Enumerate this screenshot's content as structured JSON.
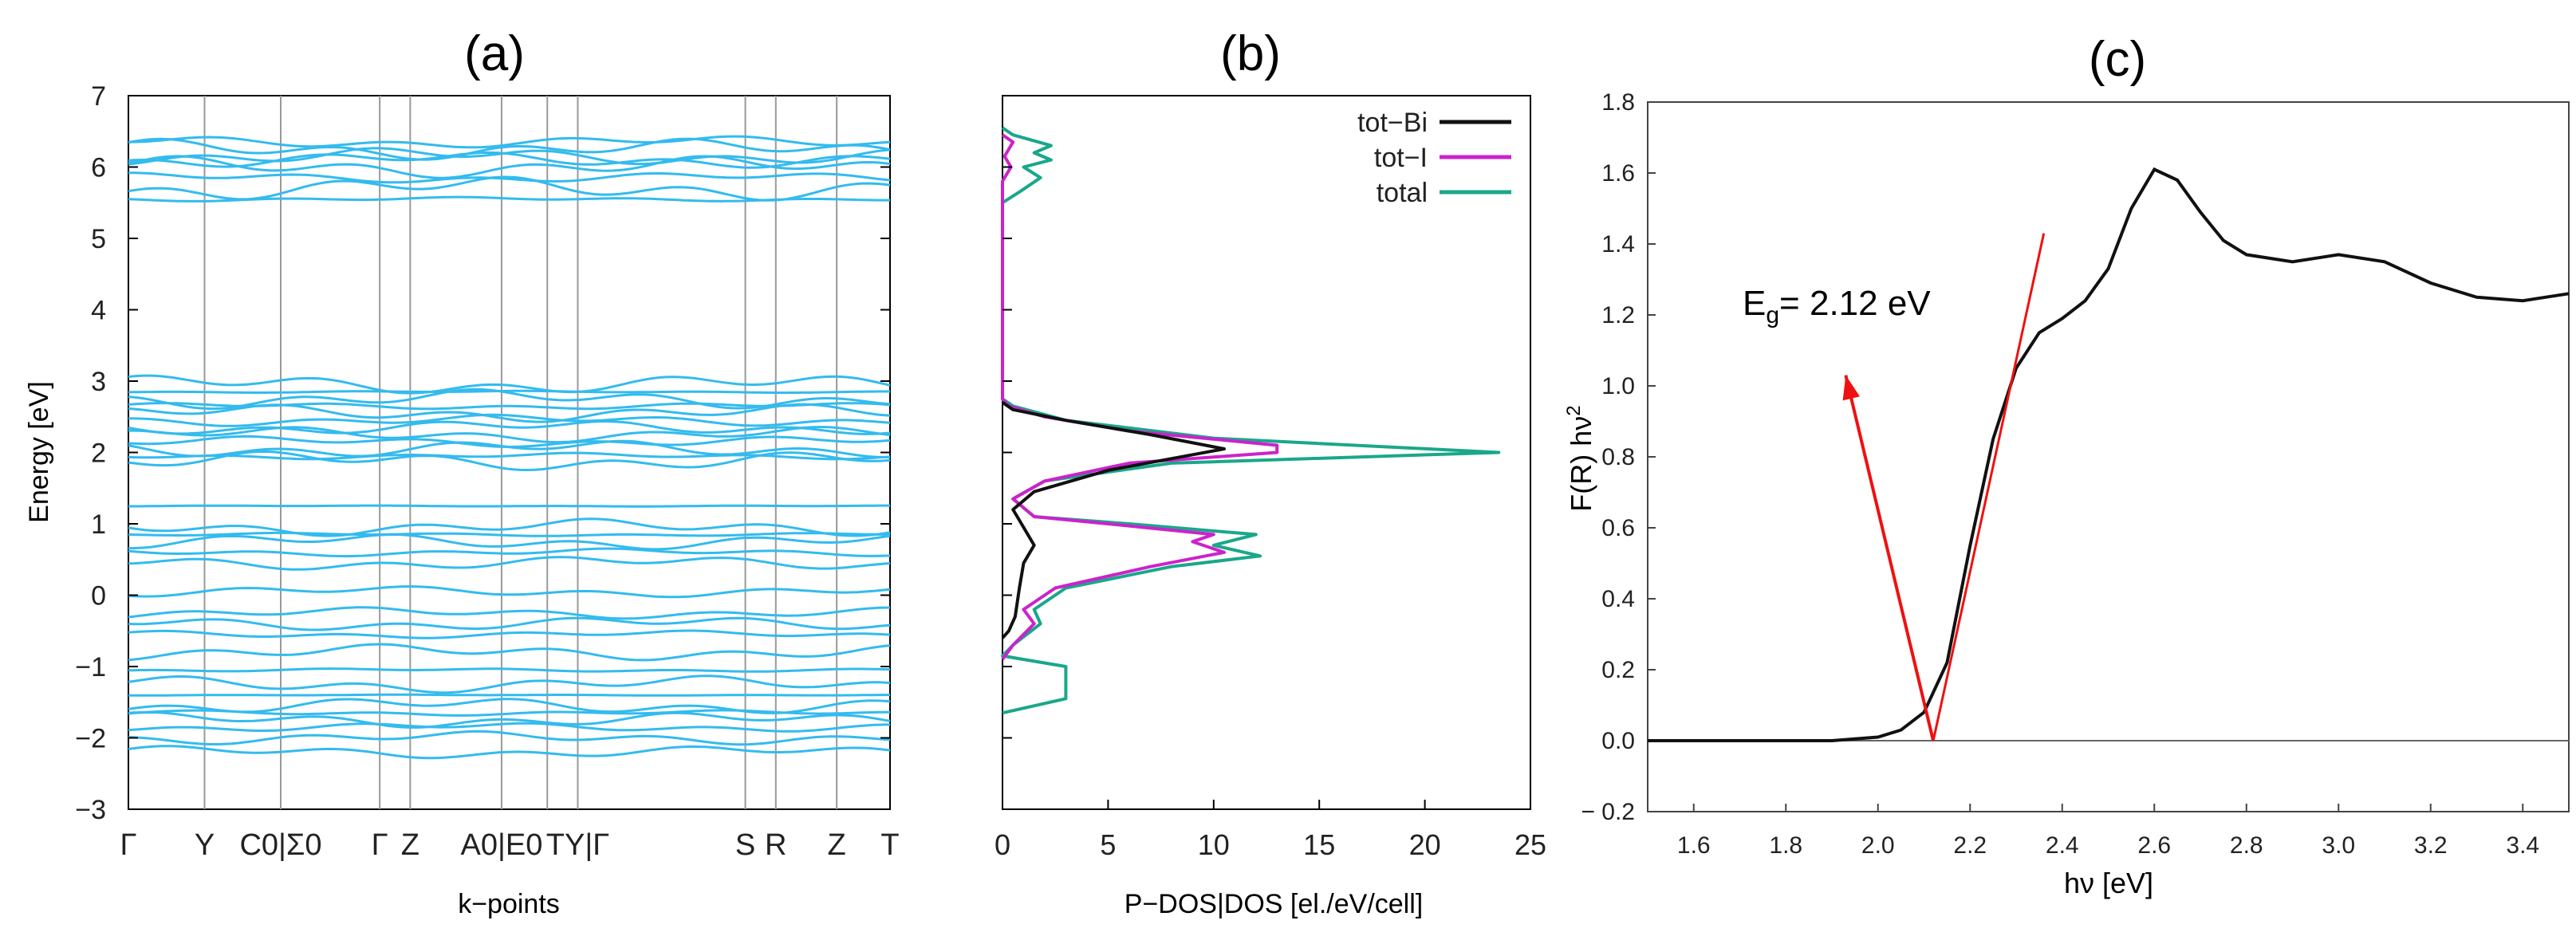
{
  "panels": {
    "a": {
      "title": "(a)",
      "chart_data": {
        "type": "line",
        "xlabel": "k−points",
        "ylabel": "Energy [eV]",
        "ylim": [
          -3,
          7
        ],
        "yticks": [
          -3,
          -2,
          -1,
          0,
          1,
          2,
          3,
          4,
          5,
          6,
          7
        ],
        "kpoint_labels": [
          "Γ",
          "Y",
          "C0|Σ0",
          "Γ",
          "Z",
          "A0|E0",
          "TY|Γ",
          "S",
          "R",
          "Z",
          "T"
        ],
        "kpoint_positions": [
          0,
          0.1,
          0.2,
          0.33,
          0.37,
          0.49,
          0.59,
          0.81,
          0.85,
          0.93,
          1.0
        ],
        "grid_lines_at": [
          0.1,
          0.2,
          0.33,
          0.37,
          0.49,
          0.55,
          0.59,
          0.81,
          0.85,
          0.93
        ],
        "series_color": "#33bbee",
        "band_energies_at_gamma": [
          6.35,
          6.25,
          6.15,
          6.1,
          6.0,
          5.85,
          5.7,
          5.55,
          2.95,
          2.85,
          2.75,
          2.65,
          2.55,
          2.45,
          2.35,
          2.25,
          2.15,
          2.05,
          1.95,
          1.88,
          1.25,
          0.95,
          0.85,
          0.75,
          0.6,
          0.45,
          0.05,
          -0.25,
          -0.4,
          -0.55,
          -0.8,
          -1.05,
          -1.25,
          -1.4,
          -1.55,
          -1.65,
          -1.75,
          -1.85,
          -2.0,
          -2.2
        ]
      }
    },
    "b": {
      "title": "(b)",
      "chart_data": {
        "type": "line",
        "orientation": "horizontal-dos",
        "xlabel": "P−DOS|DOS [el./eV/cell]",
        "xlim": [
          0,
          25
        ],
        "xticks": [
          0,
          5,
          10,
          15,
          20,
          25
        ],
        "ylim": [
          -3,
          7
        ],
        "legend": "top-right",
        "series": [
          {
            "name": "tot−Bi",
            "color": "#111111",
            "points": [
              [
                0,
                -0.6
              ],
              [
                0.3,
                -0.5
              ],
              [
                0.6,
                -0.3
              ],
              [
                0.8,
                0.1
              ],
              [
                1.0,
                0.45
              ],
              [
                1.5,
                0.7
              ],
              [
                1.0,
                0.95
              ],
              [
                0.5,
                1.2
              ],
              [
                1.5,
                1.45
              ],
              [
                5,
                1.75
              ],
              [
                10.5,
                2.05
              ],
              [
                7,
                2.25
              ],
              [
                3,
                2.45
              ],
              [
                0.5,
                2.6
              ],
              [
                0,
                2.7
              ]
            ]
          },
          {
            "name": "tot−I",
            "color": "#cc22cc",
            "points": [
              [
                0,
                -0.9
              ],
              [
                0.5,
                -0.7
              ],
              [
                1.5,
                -0.4
              ],
              [
                1.0,
                -0.2
              ],
              [
                2.5,
                0.1
              ],
              [
                7,
                0.4
              ],
              [
                10.5,
                0.6
              ],
              [
                9,
                0.75
              ],
              [
                10,
                0.85
              ],
              [
                5,
                1.0
              ],
              [
                1.5,
                1.1
              ],
              [
                0.5,
                1.35
              ],
              [
                2,
                1.6
              ],
              [
                6,
                1.85
              ],
              [
                13,
                2.0
              ],
              [
                13,
                2.1
              ],
              [
                6,
                2.3
              ],
              [
                2,
                2.5
              ],
              [
                0.3,
                2.65
              ],
              [
                0,
                2.75
              ],
              [
                0,
                5.8
              ],
              [
                0.4,
                6.0
              ],
              [
                0.1,
                6.15
              ],
              [
                0.5,
                6.35
              ],
              [
                0,
                6.45
              ]
            ]
          },
          {
            "name": "total",
            "color": "#1aa78a",
            "points": [
              [
                0,
                -1.65
              ],
              [
                3,
                -1.45
              ],
              [
                3,
                -1.0
              ],
              [
                0,
                -0.85
              ],
              [
                0.5,
                -0.7
              ],
              [
                1.8,
                -0.4
              ],
              [
                1.5,
                -0.2
              ],
              [
                3,
                0.1
              ],
              [
                8,
                0.4
              ],
              [
                12.2,
                0.55
              ],
              [
                10,
                0.7
              ],
              [
                12,
                0.85
              ],
              [
                6,
                1.0
              ],
              [
                1.5,
                1.1
              ],
              [
                0.5,
                1.35
              ],
              [
                2,
                1.6
              ],
              [
                8,
                1.85
              ],
              [
                23.5,
                2.0
              ],
              [
                10,
                2.2
              ],
              [
                3,
                2.45
              ],
              [
                0.5,
                2.65
              ],
              [
                0,
                2.75
              ],
              [
                0,
                5.5
              ],
              [
                0.8,
                5.65
              ],
              [
                1.8,
                5.85
              ],
              [
                1,
                6.0
              ],
              [
                2.3,
                6.1
              ],
              [
                1.5,
                6.2
              ],
              [
                2.3,
                6.3
              ],
              [
                0.5,
                6.45
              ],
              [
                0,
                6.55
              ]
            ]
          }
        ]
      }
    },
    "c": {
      "title": "(c)",
      "chart_data": {
        "type": "line",
        "xlabel": "hν [eV]",
        "ylabel": "F(R) hν",
        "ylabel_sup": "2",
        "xlim": [
          1.5,
          3.5
        ],
        "ylim": [
          -0.2,
          1.8
        ],
        "xticks": [
          1.6,
          1.8,
          2.0,
          2.2,
          2.4,
          2.6,
          2.8,
          3.0,
          3.2,
          3.4
        ],
        "yticks": [
          -0.2,
          0.0,
          0.2,
          0.4,
          0.6,
          0.8,
          1.0,
          1.2,
          1.4,
          1.6,
          1.8
        ],
        "annotation": {
          "main": "E",
          "sub": "g",
          "value": "= 2.12 eV"
        },
        "series": [
          {
            "name": "F(R) hν²",
            "color": "#111111",
            "points": [
              [
                1.5,
                0.0
              ],
              [
                1.9,
                0.0
              ],
              [
                2.0,
                0.01
              ],
              [
                2.05,
                0.03
              ],
              [
                2.1,
                0.08
              ],
              [
                2.15,
                0.22
              ],
              [
                2.2,
                0.55
              ],
              [
                2.25,
                0.85
              ],
              [
                2.3,
                1.05
              ],
              [
                2.35,
                1.15
              ],
              [
                2.4,
                1.19
              ],
              [
                2.45,
                1.24
              ],
              [
                2.5,
                1.33
              ],
              [
                2.55,
                1.5
              ],
              [
                2.6,
                1.61
              ],
              [
                2.65,
                1.58
              ],
              [
                2.7,
                1.49
              ],
              [
                2.75,
                1.41
              ],
              [
                2.8,
                1.37
              ],
              [
                2.9,
                1.35
              ],
              [
                3.0,
                1.37
              ],
              [
                3.1,
                1.35
              ],
              [
                3.2,
                1.29
              ],
              [
                3.3,
                1.25
              ],
              [
                3.4,
                1.24
              ],
              [
                3.5,
                1.26
              ]
            ]
          },
          {
            "name": "tangent",
            "color": "#ee1111",
            "points": [
              [
                2.12,
                0.0
              ],
              [
                2.36,
                1.43
              ]
            ]
          }
        ],
        "arrow": {
          "color": "#ee1111",
          "from": [
            2.12,
            0.0
          ],
          "to": [
            1.93,
            1.03
          ]
        }
      }
    }
  }
}
